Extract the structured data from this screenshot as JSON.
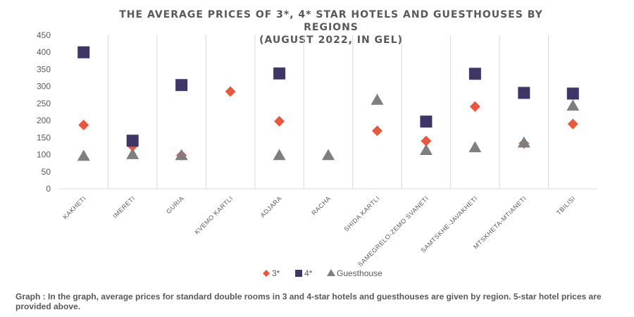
{
  "chart_data": {
    "type": "scatter",
    "title_lines": [
      "THE AVERAGE PRICES OF 3*, 4* STAR HOTELS AND GUESTHOUSES BY REGIONS",
      "(AUGUST 2022, IN GEL)"
    ],
    "categories": [
      "KAKHETI",
      "IMERETI",
      "GURIA",
      "KVEMO KARTLI",
      "ADJARA",
      "RACHA",
      "SHIDA KARTLI",
      "SAMEGRELO-ZEMO SVANETI",
      "SAMTSKHE-JAVAKHETI",
      "MTSKHETA-MTIANETI",
      "TBILISI"
    ],
    "ylim": [
      0,
      450
    ],
    "yticks": [
      0,
      50,
      100,
      150,
      200,
      250,
      300,
      350,
      400,
      450
    ],
    "grid": "vertical category separators",
    "legend_position": "bottom",
    "series": [
      {
        "name": "3*",
        "marker": "diamond",
        "color": "#e9573f",
        "values": [
          187,
          125,
          98,
          285,
          198,
          null,
          170,
          140,
          241,
          133,
          190
        ]
      },
      {
        "name": "4*",
        "marker": "square",
        "color": "#3f3567",
        "values": [
          400,
          141,
          304,
          null,
          338,
          null,
          null,
          197,
          337,
          281,
          279
        ]
      },
      {
        "name": "Guesthouse",
        "marker": "triangle",
        "color": "#7f7f7f",
        "values": [
          96,
          101,
          98,
          null,
          98,
          98,
          260,
          113,
          121,
          135,
          243
        ]
      }
    ]
  },
  "caption": "Graph : In the graph, average prices for standard double rooms in 3 and 4-star hotels and guesthouses are given by region. 5-star hotel prices are provided above."
}
